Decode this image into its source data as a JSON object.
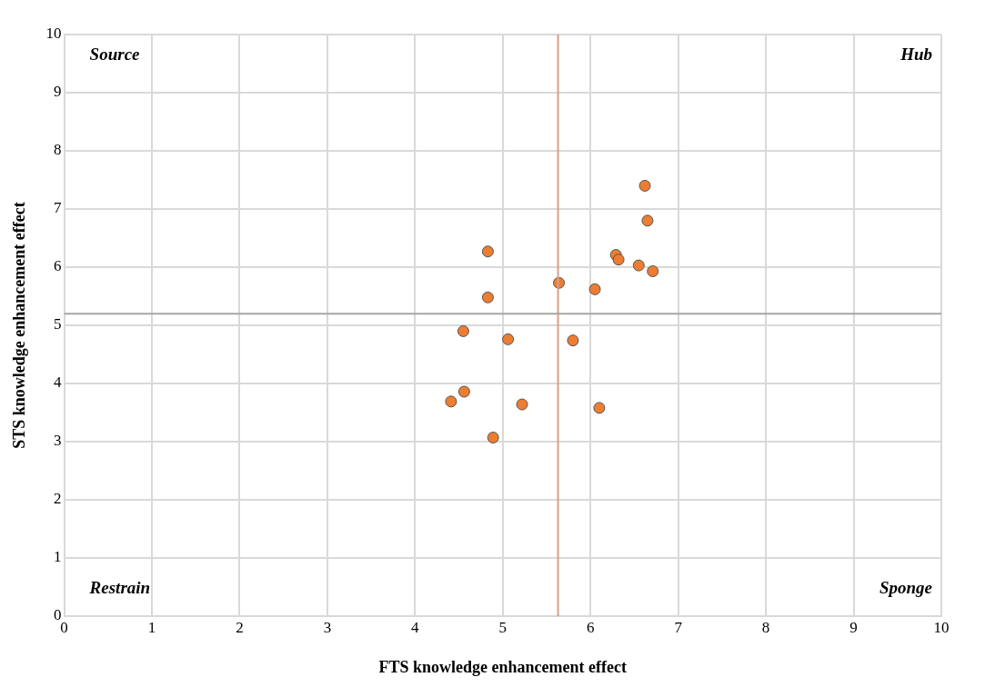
{
  "chart_data": {
    "type": "scatter",
    "xlabel": "FTS knowledge enhancement effect",
    "ylabel": "STS knowledge enhancement effect",
    "x": [
      6.62,
      6.65,
      4.83,
      6.29,
      6.32,
      6.55,
      6.71,
      5.64,
      6.05,
      4.83,
      4.55,
      5.06,
      5.8,
      4.56,
      4.41,
      5.22,
      6.1,
      4.89
    ],
    "values": [
      7.4,
      6.8,
      6.27,
      6.21,
      6.13,
      6.03,
      5.93,
      5.73,
      5.62,
      5.48,
      4.9,
      4.76,
      4.74,
      3.86,
      3.69,
      3.64,
      3.58,
      3.07
    ],
    "color": "#ed7d31",
    "marker": "circle",
    "xlim": [
      0,
      10
    ],
    "xticks": [
      0,
      1,
      2,
      3,
      4,
      5,
      6,
      7,
      8,
      9,
      10
    ],
    "ylim": [
      0,
      10
    ],
    "yticks": [
      0,
      1,
      2,
      3,
      4,
      5,
      6,
      7,
      8,
      9,
      10
    ],
    "grid": true,
    "legend": false,
    "ref_lines": [
      {
        "axis": "x",
        "value": 5.63,
        "color": "#d4a088"
      },
      {
        "axis": "y",
        "value": 5.2,
        "color": "#a6a6a6"
      }
    ],
    "annotations": [
      "Source",
      "Hub",
      "Restrain",
      "Sponge"
    ]
  }
}
